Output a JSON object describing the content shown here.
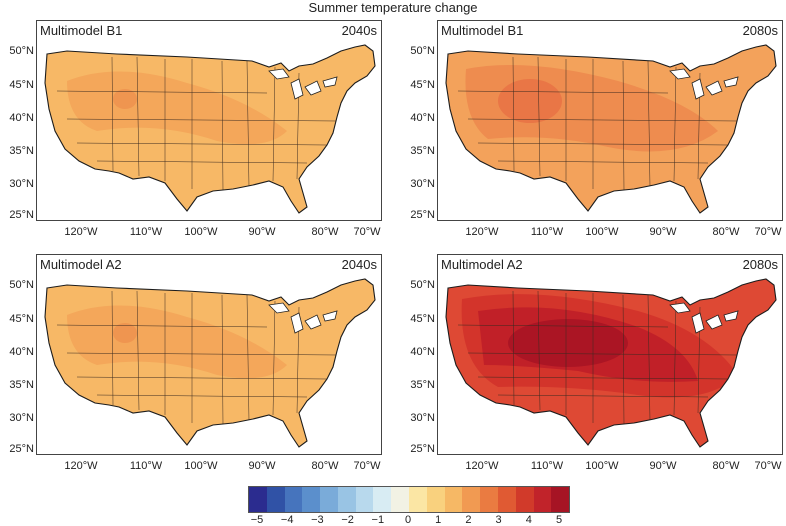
{
  "figure": {
    "title": "Summer temperature change"
  },
  "panels": [
    {
      "model": "Multimodel B1",
      "period": "2040s",
      "level": 2
    },
    {
      "model": "Multimodel B1",
      "period": "2080s",
      "level": 3
    },
    {
      "model": "Multimodel A2",
      "period": "2040s",
      "level": 2
    },
    {
      "model": "Multimodel A2",
      "period": "2080s",
      "level": 5
    }
  ],
  "axes": {
    "lat_labels": [
      "50°N",
      "45°N",
      "40°N",
      "35°N",
      "30°N",
      "25°N"
    ],
    "lon_labels": [
      "120°W",
      "110°W",
      "100°W",
      "90°W",
      "80°W",
      "70°W"
    ]
  },
  "colorbar": {
    "tick_labels": [
      "−5",
      "−4",
      "−3",
      "−2",
      "−1",
      "0",
      "1",
      "2",
      "3",
      "4",
      "5"
    ],
    "colors": [
      "#2b2c8f",
      "#3052a6",
      "#4674bd",
      "#5b8fcc",
      "#7aabd9",
      "#99c4e4",
      "#b8d9ed",
      "#d8ecf3",
      "#f2f2e4",
      "#fbe6a4",
      "#f9d17e",
      "#f6b865",
      "#f19a52",
      "#ea7b41",
      "#e05a33",
      "#d13a2a",
      "#c1232a",
      "#a61424"
    ]
  }
}
